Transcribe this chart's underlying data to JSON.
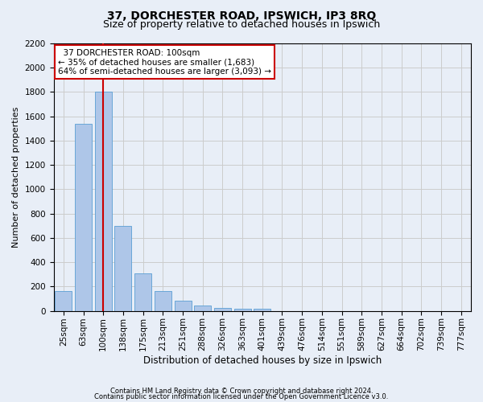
{
  "title": "37, DORCHESTER ROAD, IPSWICH, IP3 8RQ",
  "subtitle": "Size of property relative to detached houses in Ipswich",
  "xlabel": "Distribution of detached houses by size in Ipswich",
  "ylabel": "Number of detached properties",
  "categories": [
    "25sqm",
    "63sqm",
    "100sqm",
    "138sqm",
    "175sqm",
    "213sqm",
    "251sqm",
    "288sqm",
    "326sqm",
    "363sqm",
    "401sqm",
    "439sqm",
    "476sqm",
    "514sqm",
    "551sqm",
    "589sqm",
    "627sqm",
    "664sqm",
    "702sqm",
    "739sqm",
    "777sqm"
  ],
  "values": [
    160,
    1540,
    1800,
    700,
    310,
    160,
    85,
    45,
    25,
    20,
    15,
    0,
    0,
    0,
    0,
    0,
    0,
    0,
    0,
    0,
    0
  ],
  "bar_color": "#aec6e8",
  "bar_edge_color": "#5a9fd4",
  "highlight_index": 2,
  "highlight_line_color": "#cc0000",
  "annotation_text": "  37 DORCHESTER ROAD: 100sqm  \n← 35% of detached houses are smaller (1,683)\n64% of semi-detached houses are larger (3,093) →",
  "annotation_box_color": "white",
  "annotation_box_edge_color": "#cc0000",
  "ylim": [
    0,
    2200
  ],
  "yticks": [
    0,
    200,
    400,
    600,
    800,
    1000,
    1200,
    1400,
    1600,
    1800,
    2000,
    2200
  ],
  "grid_color": "#cccccc",
  "background_color": "#e8eef7",
  "plot_background_color": "#e8eef7",
  "footer_line1": "Contains HM Land Registry data © Crown copyright and database right 2024.",
  "footer_line2": "Contains public sector information licensed under the Open Government Licence v3.0.",
  "title_fontsize": 10,
  "subtitle_fontsize": 9,
  "tick_fontsize": 7.5,
  "ylabel_fontsize": 8,
  "xlabel_fontsize": 8.5,
  "annotation_fontsize": 7.5,
  "footer_fontsize": 6
}
